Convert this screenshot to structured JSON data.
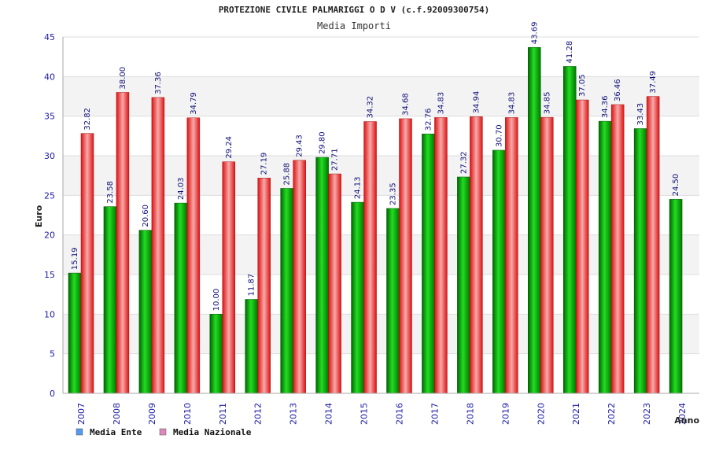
{
  "chart_data": {
    "type": "bar",
    "title": "PROTEZIONE CIVILE PALMARIGGI O D V (c.f.92009300754)",
    "subtitle": "Media Importi",
    "xlabel": "Anno",
    "ylabel": "Euro",
    "ylim": [
      0,
      45
    ],
    "yticks": [
      "0",
      "5",
      "10",
      "15",
      "20",
      "25",
      "30",
      "35",
      "40",
      "45"
    ],
    "categories": [
      "2007",
      "2008",
      "2009",
      "2010",
      "2011",
      "2012",
      "2013",
      "2014",
      "2015",
      "2016",
      "2017",
      "2018",
      "2019",
      "2020",
      "2021",
      "2022",
      "2023",
      "2024"
    ],
    "series": [
      {
        "name": "Media Ente",
        "color": "#00aa00",
        "values": [
          15.19,
          23.58,
          20.6,
          24.03,
          10.0,
          11.87,
          25.88,
          29.8,
          24.13,
          23.35,
          32.76,
          27.32,
          30.7,
          43.69,
          41.28,
          34.36,
          33.43,
          24.5
        ],
        "labels": [
          "15.19",
          "23.58",
          "20.60",
          "24.03",
          "10.00",
          "11.87",
          "25.88",
          "29.80",
          "24.13",
          "23.35",
          "32.76",
          "27.32",
          "30.70",
          "43.69",
          "41.28",
          "34.36",
          "33.43",
          "24.50"
        ]
      },
      {
        "name": "Media Nazionale",
        "color": "#dd2222",
        "values": [
          32.82,
          38.0,
          37.36,
          34.79,
          29.24,
          27.19,
          29.43,
          27.71,
          34.32,
          34.68,
          34.83,
          34.94,
          34.83,
          34.85,
          37.05,
          36.46,
          37.49,
          null
        ],
        "labels": [
          "32.82",
          "38.00",
          "37.36",
          "34.79",
          "29.24",
          "27.19",
          "29.43",
          "27.71",
          "34.32",
          "34.68",
          "34.83",
          "34.94",
          "34.83",
          "34.85",
          "37.05",
          "36.46",
          "37.49",
          null
        ]
      }
    ],
    "grid": true,
    "legend_position": "bottom-left",
    "legend_colors": [
      "#5599ee",
      "#dd88bb"
    ]
  }
}
